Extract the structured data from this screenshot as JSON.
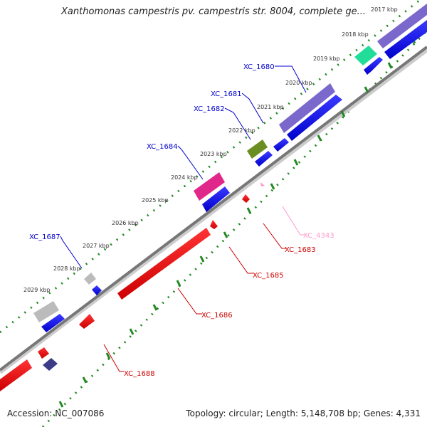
{
  "title": "Xanthomonas campestris pv. campestris str. 8004, complete ge...",
  "footer": {
    "accession": "Accession: NC_007086",
    "summary": "Topology: circular; Length: 5,148,708 bp; Genes: 4,331"
  },
  "ticks": [
    {
      "label": "2017 kbp"
    },
    {
      "label": "2018 kbp"
    },
    {
      "label": "2019 kbp"
    },
    {
      "label": "2020 kbp"
    },
    {
      "label": "2021 kbp"
    },
    {
      "label": "2022 kbp"
    },
    {
      "label": "2023 kbp"
    },
    {
      "label": "2024 kbp"
    },
    {
      "label": "2025 kbp"
    },
    {
      "label": "2026 kbp"
    },
    {
      "label": "2027 kbp"
    },
    {
      "label": "2028 kbp"
    },
    {
      "label": "2029 kbp"
    }
  ],
  "gene_labels": [
    {
      "name": "XC_1680",
      "strand": "forward",
      "color": "#0000cc"
    },
    {
      "name": "XC_1681",
      "strand": "forward",
      "color": "#0000cc"
    },
    {
      "name": "XC_1682",
      "strand": "forward",
      "color": "#0000cc"
    },
    {
      "name": "XC_1684",
      "strand": "forward",
      "color": "#0000cc"
    },
    {
      "name": "XC_1687",
      "strand": "forward",
      "color": "#0000cc"
    },
    {
      "name": "XC_4343",
      "strand": "reverse",
      "color": "#ff99cc"
    },
    {
      "name": "XC_1683",
      "strand": "reverse",
      "color": "#cc0000"
    },
    {
      "name": "XC_1685",
      "strand": "reverse",
      "color": "#cc0000"
    },
    {
      "name": "XC_1686",
      "strand": "reverse",
      "color": "#cc0000"
    },
    {
      "name": "XC_1688",
      "strand": "reverse",
      "color": "#cc0000"
    }
  ],
  "colors": {
    "forward_cds": "#0000ee",
    "reverse_cds": "#ee0000",
    "backbone": "#777777",
    "ticks": "#228822",
    "purple": "#7b68cc",
    "teal": "#22dd99",
    "olive": "#6b8e23",
    "magenta": "#e0288a",
    "grey": "#bbbbbb",
    "navy": "#3b3b88",
    "pink": "#ff99cc"
  }
}
